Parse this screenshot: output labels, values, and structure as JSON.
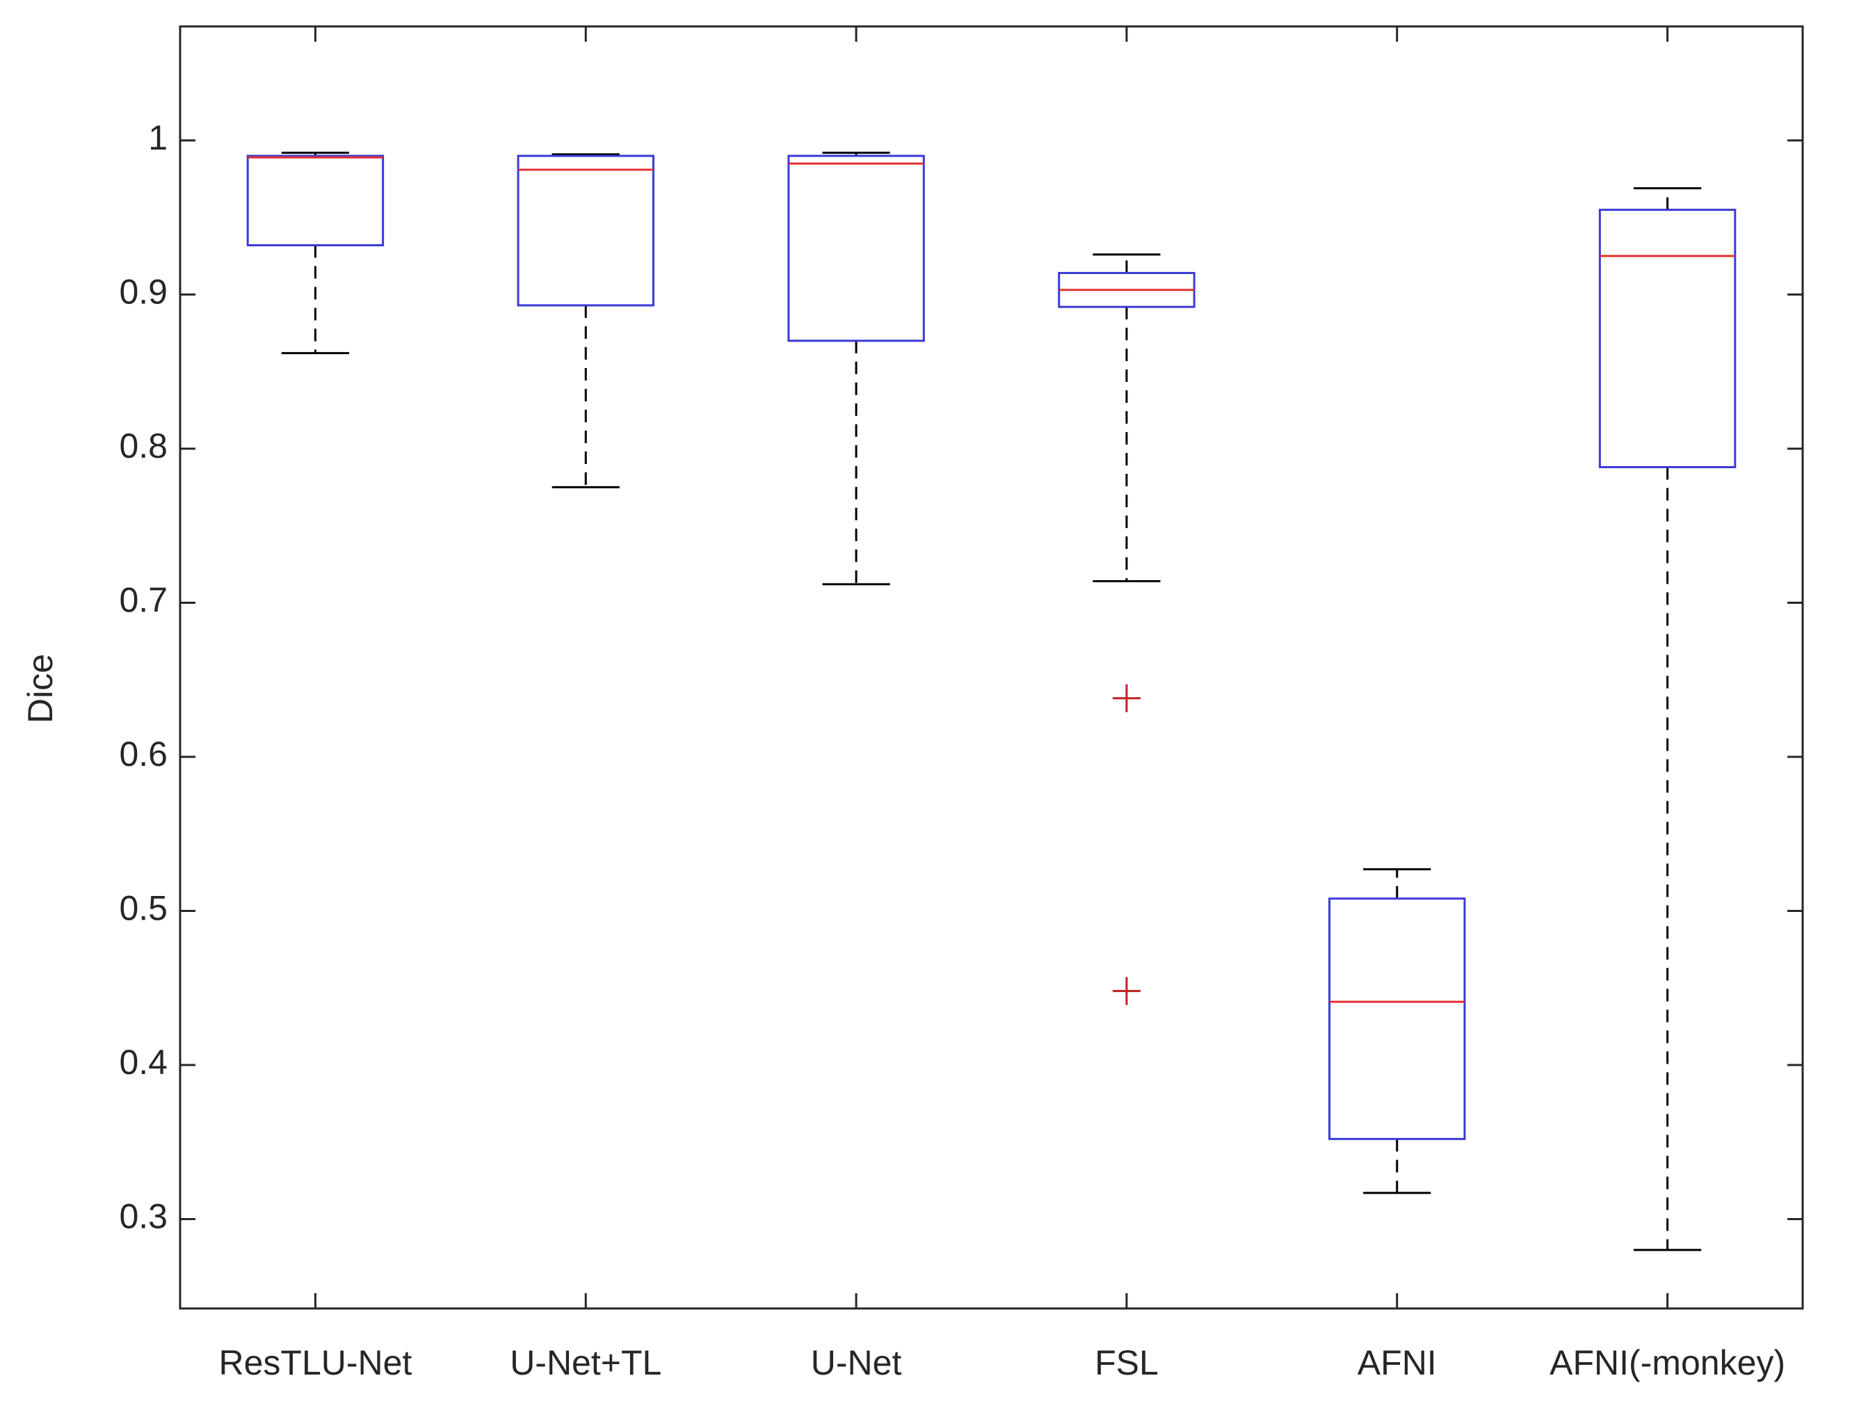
{
  "chart_data": {
    "type": "box",
    "ylabel": "Dice",
    "categories": [
      "ResTLU-Net",
      "U-Net+TL",
      "U-Net",
      "FSL",
      "AFNI",
      "AFNI(-monkey)"
    ],
    "boxes": [
      {
        "whislo": 0.862,
        "q1": 0.932,
        "med": 0.989,
        "q3": 0.99,
        "whishi": 0.992,
        "fliers": []
      },
      {
        "whislo": 0.775,
        "q1": 0.893,
        "med": 0.981,
        "q3": 0.99,
        "whishi": 0.991,
        "fliers": []
      },
      {
        "whislo": 0.712,
        "q1": 0.87,
        "med": 0.985,
        "q3": 0.99,
        "whishi": 0.992,
        "fliers": []
      },
      {
        "whislo": 0.714,
        "q1": 0.892,
        "med": 0.903,
        "q3": 0.914,
        "whishi": 0.926,
        "fliers": [
          0.638,
          0.448
        ]
      },
      {
        "whislo": 0.317,
        "q1": 0.352,
        "med": 0.441,
        "q3": 0.508,
        "whishi": 0.527,
        "fliers": []
      },
      {
        "whislo": 0.28,
        "q1": 0.788,
        "med": 0.925,
        "q3": 0.955,
        "whishi": 0.969,
        "fliers": []
      }
    ],
    "box_color": "#3a3ad8",
    "median_color": "#e03030",
    "whisker_color": "#000000",
    "flier_color": "#c02020",
    "ylim": [
      0.242,
      1.074
    ],
    "yticks": [
      0.3,
      0.4,
      0.5,
      0.6,
      0.7,
      0.8,
      0.9,
      1
    ]
  }
}
